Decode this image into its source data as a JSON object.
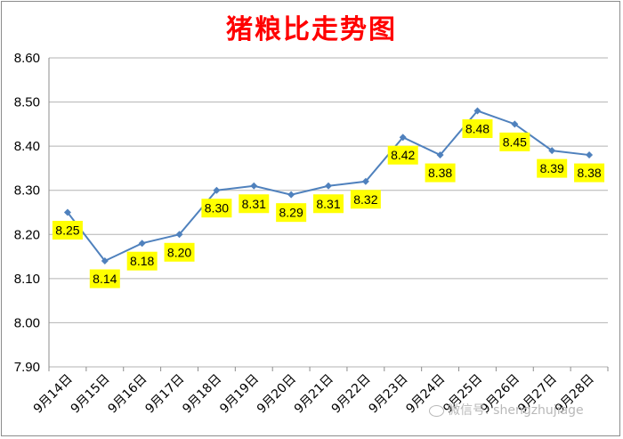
{
  "chart_data": {
    "type": "line",
    "title": "猪粮比走势图",
    "categories": [
      "9月14日",
      "9月15日",
      "9月16日",
      "9月17日",
      "9月18日",
      "9月19日",
      "9月20日",
      "9月21日",
      "9月22日",
      "9月23日",
      "9月24日",
      "9月25日",
      "9月26日",
      "9月27日",
      "9月28日"
    ],
    "values": [
      8.25,
      8.14,
      8.18,
      8.2,
      8.3,
      8.31,
      8.29,
      8.31,
      8.32,
      8.42,
      8.38,
      8.48,
      8.45,
      8.39,
      8.38
    ],
    "data_labels": [
      "8.25",
      "8.14",
      "8.18",
      "8.20",
      "8.30",
      "8.31",
      "8.29",
      "8.31",
      "8.32",
      "8.42",
      "8.38",
      "8.48",
      "8.45",
      "8.39",
      "8.38"
    ],
    "y_ticks": [
      "7.90",
      "8.00",
      "8.10",
      "8.20",
      "8.30",
      "8.40",
      "8.50",
      "8.60"
    ],
    "ylim": [
      7.9,
      8.6
    ],
    "xlabel": "",
    "ylabel": "",
    "grid": "horizontal",
    "legend": "none",
    "colors": {
      "line": "#4f81bd",
      "label_bg": "#ffff00",
      "title": "#ff0000",
      "grid": "#b3b3b3"
    }
  },
  "watermark": "微信号: shengzhujiage"
}
